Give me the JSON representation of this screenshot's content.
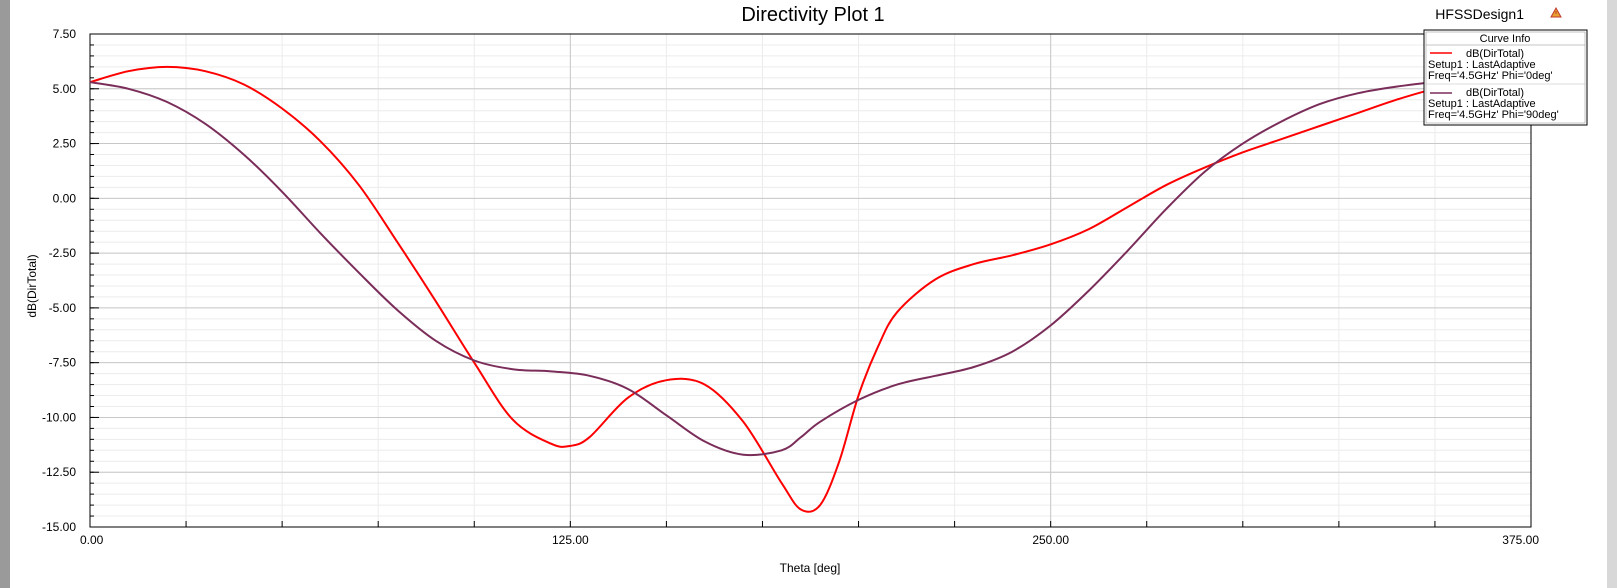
{
  "window": {
    "design_name": "HFSSDesign1"
  },
  "chart_data": {
    "type": "line",
    "title": "Directivity Plot 1",
    "xlabel": "Theta [deg]",
    "ylabel": "dB(DirTotal)",
    "xlim": [
      0,
      375
    ],
    "ylim": [
      -15,
      7.5
    ],
    "grid": true,
    "x_tick_labels": [
      "0.00",
      "125.00",
      "250.00",
      "375.00"
    ],
    "y_tick_labels": [
      "7.50",
      "5.00",
      "2.50",
      "0.00",
      "-2.50",
      "-5.00",
      "-7.50",
      "-10.00",
      "-12.50",
      "-15.00"
    ],
    "legend": {
      "title": "Curve Info",
      "position": "top-right",
      "entries": [
        {
          "name": "dB(DirTotal)",
          "line1": "Setup1 : LastAdaptive",
          "line2": "Freq='4.5GHz' Phi='0deg'",
          "color": "#ff0000"
        },
        {
          "name": "dB(DirTotal)",
          "line1": "Setup1 : LastAdaptive",
          "line2": "Freq='4.5GHz' Phi='90deg'",
          "color": "#7b2d5a"
        }
      ]
    },
    "series": [
      {
        "name": "dB(DirTotal)",
        "color": "#ff0000",
        "x": [
          0,
          10,
          20,
          30,
          40,
          50,
          60,
          70,
          80,
          90,
          100,
          110,
          120,
          125,
          130,
          140,
          150,
          160,
          170,
          180,
          185,
          190,
          195,
          200,
          205,
          210,
          220,
          230,
          240,
          250,
          260,
          270,
          280,
          290,
          300,
          310,
          320,
          330,
          340,
          350,
          360,
          365
        ],
        "values": [
          5.3,
          5.8,
          6.0,
          5.8,
          5.2,
          4.1,
          2.6,
          0.6,
          -2.0,
          -4.7,
          -7.5,
          -10.1,
          -11.2,
          -11.3,
          -10.9,
          -9.1,
          -8.3,
          -8.5,
          -10.2,
          -13.0,
          -14.2,
          -14.0,
          -12.0,
          -9.0,
          -6.8,
          -5.2,
          -3.7,
          -3.0,
          -2.6,
          -2.1,
          -1.4,
          -0.4,
          0.6,
          1.4,
          2.1,
          2.7,
          3.3,
          3.9,
          4.5,
          5.0,
          5.3,
          5.4
        ]
      },
      {
        "name": "dB(DirTotal)",
        "color": "#7b2d5a",
        "x": [
          0,
          10,
          20,
          30,
          40,
          50,
          60,
          70,
          80,
          90,
          100,
          110,
          120,
          130,
          140,
          150,
          160,
          170,
          180,
          185,
          190,
          200,
          210,
          220,
          230,
          240,
          250,
          260,
          270,
          280,
          290,
          300,
          310,
          320,
          330,
          340,
          350,
          360,
          365
        ],
        "values": [
          5.3,
          5.0,
          4.4,
          3.4,
          2.0,
          0.3,
          -1.6,
          -3.4,
          -5.1,
          -6.5,
          -7.4,
          -7.8,
          -7.9,
          -8.1,
          -8.7,
          -9.9,
          -11.1,
          -11.7,
          -11.5,
          -10.9,
          -10.2,
          -9.2,
          -8.5,
          -8.1,
          -7.7,
          -7.0,
          -5.8,
          -4.2,
          -2.4,
          -0.5,
          1.2,
          2.5,
          3.5,
          4.3,
          4.8,
          5.1,
          5.3,
          5.3,
          5.3
        ]
      }
    ]
  }
}
